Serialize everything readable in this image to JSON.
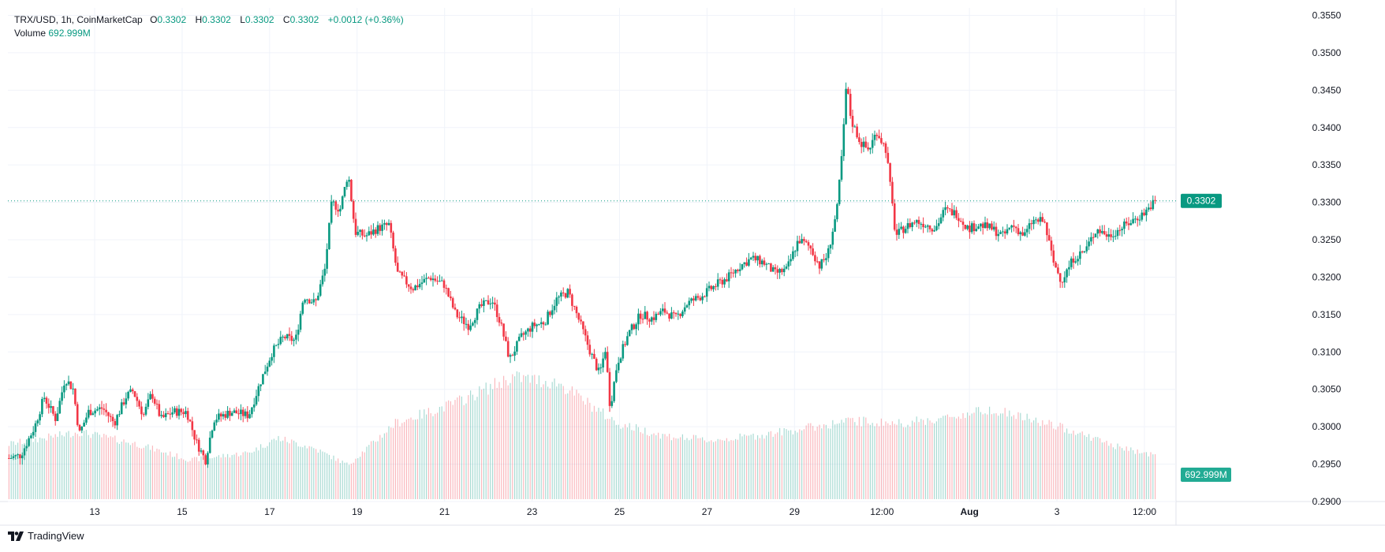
{
  "legend": {
    "symbol": "TRX/USD, 1h, CoinMarketCap",
    "open_label": "O",
    "open": "0.3302",
    "high_label": "H",
    "high": "0.3302",
    "low_label": "L",
    "low": "0.3302",
    "close_label": "C",
    "close": "0.3302",
    "change": "+0.0012 (+0.36%)",
    "volume_label": "Volume",
    "volume_value": "692.999M"
  },
  "brand": {
    "name": "TradingView",
    "icon": "tradingview-logo"
  },
  "colors": {
    "up": "#089981",
    "down": "#F23645",
    "grid": "#F0F3FA",
    "axis_text": "#131722"
  },
  "chart_data": {
    "type": "candlestick",
    "title": "TRX/USD, 1h, CoinMarketCap",
    "ylim": [
      0.29,
      0.356
    ],
    "y_ticks": [
      "0.3550",
      "0.3500",
      "0.3450",
      "0.3400",
      "0.3350",
      "0.3300",
      "0.3250",
      "0.3200",
      "0.3150",
      "0.3100",
      "0.3050",
      "0.3000",
      "0.2950",
      "0.2900"
    ],
    "x_ticks": [
      "13",
      "15",
      "17",
      "19",
      "21",
      "23",
      "25",
      "27",
      "29",
      "12:00",
      "Aug",
      "3",
      "12:00"
    ],
    "last_price": 0.3302,
    "last_price_label": "0.3302",
    "last_volume_label": "692.999M",
    "price_path": [
      [
        0.0,
        0.2958
      ],
      [
        0.01,
        0.2962
      ],
      [
        0.022,
        0.3
      ],
      [
        0.03,
        0.304
      ],
      [
        0.04,
        0.301
      ],
      [
        0.048,
        0.3065
      ],
      [
        0.055,
        0.305
      ],
      [
        0.06,
        0.299
      ],
      [
        0.068,
        0.302
      ],
      [
        0.08,
        0.3025
      ],
      [
        0.09,
        0.3005
      ],
      [
        0.1,
        0.304
      ],
      [
        0.106,
        0.3048
      ],
      [
        0.115,
        0.3015
      ],
      [
        0.122,
        0.3045
      ],
      [
        0.13,
        0.301
      ],
      [
        0.14,
        0.302
      ],
      [
        0.152,
        0.302
      ],
      [
        0.16,
        0.298
      ],
      [
        0.168,
        0.2955
      ],
      [
        0.175,
        0.301
      ],
      [
        0.19,
        0.302
      ],
      [
        0.205,
        0.3015
      ],
      [
        0.215,
        0.306
      ],
      [
        0.225,
        0.31
      ],
      [
        0.235,
        0.312
      ],
      [
        0.245,
        0.3115
      ],
      [
        0.252,
        0.3175
      ],
      [
        0.262,
        0.3165
      ],
      [
        0.27,
        0.321
      ],
      [
        0.276,
        0.33
      ],
      [
        0.283,
        0.329
      ],
      [
        0.29,
        0.334
      ],
      [
        0.296,
        0.326
      ],
      [
        0.305,
        0.3255
      ],
      [
        0.315,
        0.3265
      ],
      [
        0.325,
        0.327
      ],
      [
        0.332,
        0.3205
      ],
      [
        0.345,
        0.3185
      ],
      [
        0.36,
        0.32
      ],
      [
        0.372,
        0.319
      ],
      [
        0.382,
        0.315
      ],
      [
        0.393,
        0.3135
      ],
      [
        0.403,
        0.316
      ],
      [
        0.413,
        0.317
      ],
      [
        0.42,
        0.314
      ],
      [
        0.428,
        0.309
      ],
      [
        0.438,
        0.312
      ],
      [
        0.448,
        0.3135
      ],
      [
        0.458,
        0.314
      ],
      [
        0.468,
        0.317
      ],
      [
        0.478,
        0.318
      ],
      [
        0.488,
        0.314
      ],
      [
        0.497,
        0.31
      ],
      [
        0.505,
        0.307
      ],
      [
        0.51,
        0.3105
      ],
      [
        0.514,
        0.3025
      ],
      [
        0.52,
        0.3085
      ],
      [
        0.53,
        0.3125
      ],
      [
        0.54,
        0.315
      ],
      [
        0.55,
        0.3145
      ],
      [
        0.56,
        0.3155
      ],
      [
        0.57,
        0.3145
      ],
      [
        0.58,
        0.3165
      ],
      [
        0.592,
        0.3175
      ],
      [
        0.605,
        0.319
      ],
      [
        0.615,
        0.32
      ],
      [
        0.625,
        0.3215
      ],
      [
        0.635,
        0.3225
      ],
      [
        0.645,
        0.322
      ],
      [
        0.655,
        0.3205
      ],
      [
        0.665,
        0.321
      ],
      [
        0.675,
        0.325
      ],
      [
        0.685,
        0.324
      ],
      [
        0.693,
        0.3215
      ],
      [
        0.7,
        0.323
      ],
      [
        0.708,
        0.329
      ],
      [
        0.713,
        0.338
      ],
      [
        0.716,
        0.346
      ],
      [
        0.72,
        0.341
      ],
      [
        0.728,
        0.338
      ],
      [
        0.735,
        0.337
      ],
      [
        0.742,
        0.3395
      ],
      [
        0.75,
        0.337
      ],
      [
        0.755,
        0.33
      ],
      [
        0.758,
        0.3255
      ],
      [
        0.765,
        0.3265
      ],
      [
        0.775,
        0.3275
      ],
      [
        0.785,
        0.327
      ],
      [
        0.792,
        0.3265
      ],
      [
        0.8,
        0.329
      ],
      [
        0.81,
        0.3285
      ],
      [
        0.82,
        0.3265
      ],
      [
        0.83,
        0.327
      ],
      [
        0.84,
        0.3265
      ],
      [
        0.85,
        0.3255
      ],
      [
        0.858,
        0.327
      ],
      [
        0.868,
        0.3255
      ],
      [
        0.875,
        0.3275
      ],
      [
        0.885,
        0.3275
      ],
      [
        0.893,
        0.322
      ],
      [
        0.9,
        0.3195
      ],
      [
        0.91,
        0.3225
      ],
      [
        0.92,
        0.3235
      ],
      [
        0.93,
        0.3265
      ],
      [
        0.94,
        0.3255
      ],
      [
        0.95,
        0.3265
      ],
      [
        0.96,
        0.3275
      ],
      [
        0.97,
        0.3285
      ],
      [
        0.98,
        0.3302
      ]
    ],
    "volume_profile": [
      [
        0.0,
        0.45
      ],
      [
        0.06,
        0.55
      ],
      [
        0.11,
        0.45
      ],
      [
        0.155,
        0.32
      ],
      [
        0.205,
        0.38
      ],
      [
        0.23,
        0.5
      ],
      [
        0.26,
        0.42
      ],
      [
        0.29,
        0.28
      ],
      [
        0.33,
        0.62
      ],
      [
        0.38,
        0.78
      ],
      [
        0.43,
        1.0
      ],
      [
        0.47,
        0.95
      ],
      [
        0.52,
        0.62
      ],
      [
        0.56,
        0.52
      ],
      [
        0.6,
        0.48
      ],
      [
        0.64,
        0.52
      ],
      [
        0.68,
        0.58
      ],
      [
        0.72,
        0.64
      ],
      [
        0.76,
        0.62
      ],
      [
        0.8,
        0.66
      ],
      [
        0.84,
        0.74
      ],
      [
        0.87,
        0.66
      ],
      [
        0.91,
        0.56
      ],
      [
        0.95,
        0.42
      ],
      [
        0.99,
        0.34
      ]
    ]
  }
}
